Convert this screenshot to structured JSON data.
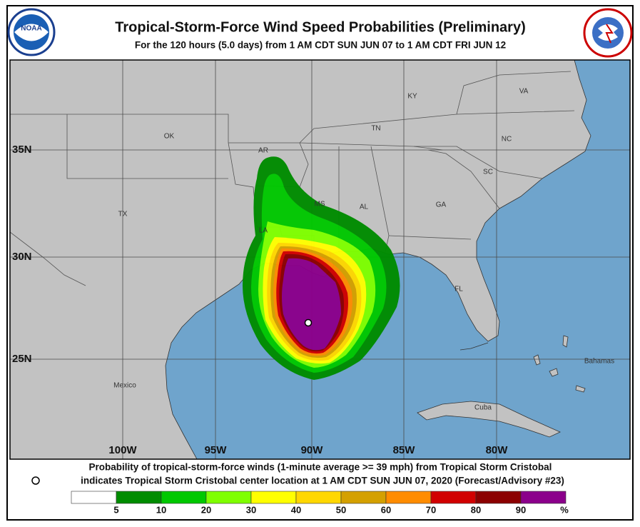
{
  "header": {
    "title": "Tropical-Storm-Force Wind Speed Probabilities (Preliminary)",
    "subtitle": "For the 120 hours (5.0 days) from 1 AM CDT SUN JUN 07 to 1 AM CDT FRI JUN 12",
    "logo_left": "NOAA"
  },
  "map": {
    "lat_labels": [
      "35N",
      "30N",
      "25N"
    ],
    "lon_labels": [
      "100W",
      "95W",
      "90W",
      "85W",
      "80W"
    ],
    "place_labels": [
      "KY",
      "VA",
      "TN",
      "NC",
      "OK",
      "AR",
      "SC",
      "TX",
      "MS",
      "AL",
      "GA",
      "LA",
      "FL",
      "Bahamas",
      "Mexico",
      "Cuba"
    ]
  },
  "footer": {
    "line1": "Probability of tropical-storm-force winds (1-minute average >= 39 mph) from Tropical Storm Cristobal",
    "line2": "indicates Tropical Storm Cristobal center location at 1 AM CDT SUN JUN 07, 2020 (Forecast/Advisory #23)"
  },
  "legend": {
    "colors": [
      "#ffffff",
      "#008c00",
      "#00c800",
      "#7fff00",
      "#ffff00",
      "#ffd700",
      "#d4a000",
      "#ff8c00",
      "#d10000",
      "#8b0000",
      "#8b008b"
    ],
    "labels": [
      5,
      10,
      20,
      30,
      40,
      50,
      60,
      70,
      80,
      90
    ],
    "unit": "%"
  }
}
